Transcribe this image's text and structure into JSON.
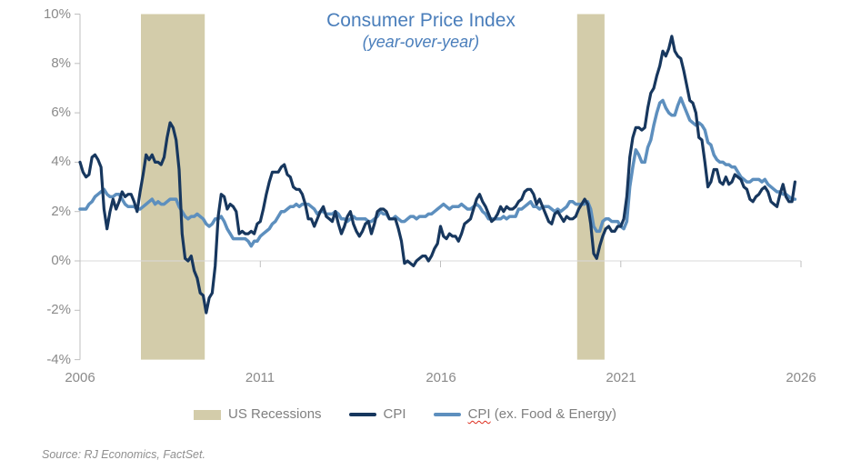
{
  "title": "Consumer Price Index",
  "subtitle": "(year-over-year)",
  "source": "Source: RJ Economics, FactSet.",
  "colors": {
    "title": "#4a7ebb",
    "axis_text": "#8a8a8a",
    "legend_text": "#7f7f7f",
    "source_text": "#8f8f8f",
    "gridline": "#d9d9d9",
    "axis_line": "#bfbfbf",
    "spellcheck_underline": "#dd2b1c"
  },
  "legend": {
    "items": [
      {
        "label": "US Recessions",
        "swatch": "box"
      },
      {
        "label": "CPI",
        "swatch": "line"
      },
      {
        "label": "CPI (ex. Food & Energy)",
        "label_head": "CPI",
        "label_tail": " (ex. Food & Energy)",
        "swatch": "line"
      }
    ]
  },
  "chart_data": {
    "type": "line",
    "title": "Consumer Price Index",
    "subtitle": "(year-over-year)",
    "grid": "zero-line-only",
    "legend_position": "bottom",
    "x_axis": {
      "start_year": 2006,
      "interval_months": 1,
      "range": [
        2006,
        2026
      ],
      "tick_values": [
        2006,
        2011,
        2016,
        2021,
        2026
      ],
      "tick_labels": [
        "2006",
        "2011",
        "2016",
        "2021",
        "2026"
      ]
    },
    "y_axis": {
      "unit": "percent",
      "range": [
        -4,
        10
      ],
      "tick_values": [
        10,
        8,
        6,
        4,
        2,
        0,
        -2,
        -4
      ],
      "tick_labels": [
        "10%",
        "8%",
        "6%",
        "4%",
        "2%",
        "0%",
        "-2%",
        "-4%"
      ]
    },
    "recessions": {
      "label": "US Recessions",
      "color": "#d3ccaa",
      "bands_years": [
        [
          2007.69,
          2009.46
        ],
        [
          2019.79,
          2020.55
        ]
      ]
    },
    "series": [
      {
        "name": "CPI",
        "color": "#17375e",
        "values": [
          4.0,
          3.6,
          3.4,
          3.5,
          4.2,
          4.3,
          4.1,
          3.8,
          2.1,
          1.3,
          2.0,
          2.5,
          2.1,
          2.4,
          2.8,
          2.6,
          2.7,
          2.7,
          2.4,
          2.0,
          2.8,
          3.5,
          4.3,
          4.1,
          4.3,
          4.0,
          4.0,
          3.9,
          4.2,
          5.0,
          5.6,
          5.4,
          4.9,
          3.7,
          1.1,
          0.1,
          0.0,
          0.2,
          -0.4,
          -0.7,
          -1.3,
          -1.4,
          -2.1,
          -1.5,
          -1.3,
          -0.2,
          1.8,
          2.7,
          2.6,
          2.1,
          2.3,
          2.2,
          2.0,
          1.1,
          1.2,
          1.1,
          1.1,
          1.2,
          1.1,
          1.5,
          1.6,
          2.1,
          2.7,
          3.2,
          3.6,
          3.6,
          3.6,
          3.8,
          3.9,
          3.5,
          3.4,
          3.0,
          2.9,
          2.9,
          2.7,
          2.3,
          1.7,
          1.7,
          1.4,
          1.7,
          2.0,
          2.2,
          1.8,
          1.7,
          1.6,
          2.0,
          1.5,
          1.1,
          1.4,
          1.8,
          2.0,
          1.5,
          1.2,
          1.0,
          1.2,
          1.5,
          1.6,
          1.1,
          1.5,
          2.0,
          2.1,
          2.1,
          2.0,
          1.7,
          1.7,
          1.7,
          1.3,
          0.8,
          -0.1,
          0.0,
          -0.1,
          -0.2,
          0.0,
          0.1,
          0.2,
          0.2,
          0.0,
          0.2,
          0.5,
          0.7,
          1.4,
          1.0,
          0.9,
          1.1,
          1.0,
          1.0,
          0.8,
          1.1,
          1.5,
          1.6,
          1.7,
          2.1,
          2.5,
          2.7,
          2.4,
          2.2,
          1.9,
          1.6,
          1.7,
          1.9,
          2.2,
          2.0,
          2.2,
          2.1,
          2.1,
          2.2,
          2.4,
          2.5,
          2.8,
          2.9,
          2.9,
          2.7,
          2.3,
          2.5,
          2.2,
          1.9,
          1.6,
          1.5,
          1.9,
          2.0,
          1.8,
          1.6,
          1.8,
          1.7,
          1.7,
          1.8,
          2.1,
          2.3,
          2.5,
          2.3,
          1.5,
          0.3,
          0.1,
          0.6,
          1.0,
          1.3,
          1.4,
          1.2,
          1.2,
          1.4,
          1.4,
          1.7,
          2.6,
          4.2,
          5.0,
          5.4,
          5.4,
          5.3,
          5.4,
          6.2,
          6.8,
          7.0,
          7.5,
          7.9,
          8.5,
          8.3,
          8.6,
          9.1,
          8.5,
          8.3,
          8.2,
          7.7,
          7.1,
          6.5,
          6.4,
          6.0,
          5.0,
          4.9,
          4.0,
          3.0,
          3.2,
          3.7,
          3.7,
          3.2,
          3.1,
          3.4,
          3.1,
          3.2,
          3.5,
          3.4,
          3.3,
          3.0,
          2.9,
          2.5,
          2.4,
          2.6,
          2.7,
          2.9,
          3.0,
          2.8,
          2.4,
          2.3,
          2.2,
          2.7,
          3.1,
          2.6,
          2.4,
          2.4,
          3.2
        ]
      },
      {
        "name": "CPI (ex. Food & Energy)",
        "color": "#5d8fbe",
        "values": [
          2.1,
          2.1,
          2.1,
          2.3,
          2.4,
          2.6,
          2.7,
          2.8,
          2.9,
          2.7,
          2.6,
          2.6,
          2.7,
          2.7,
          2.5,
          2.3,
          2.2,
          2.2,
          2.2,
          2.1,
          2.1,
          2.2,
          2.3,
          2.4,
          2.5,
          2.3,
          2.4,
          2.3,
          2.3,
          2.4,
          2.5,
          2.5,
          2.5,
          2.2,
          2.0,
          1.8,
          1.7,
          1.8,
          1.8,
          1.9,
          1.8,
          1.7,
          1.5,
          1.4,
          1.5,
          1.7,
          1.7,
          1.8,
          1.6,
          1.3,
          1.1,
          0.9,
          0.9,
          0.9,
          0.9,
          0.9,
          0.8,
          0.6,
          0.8,
          0.8,
          1.0,
          1.1,
          1.2,
          1.3,
          1.5,
          1.6,
          1.8,
          2.0,
          2.0,
          2.1,
          2.2,
          2.2,
          2.3,
          2.2,
          2.3,
          2.3,
          2.3,
          2.2,
          2.1,
          1.9,
          2.0,
          2.0,
          1.9,
          1.9,
          1.9,
          2.0,
          1.9,
          1.7,
          1.7,
          1.6,
          1.7,
          1.8,
          1.7,
          1.7,
          1.7,
          1.7,
          1.6,
          1.6,
          1.7,
          1.8,
          2.0,
          1.9,
          1.9,
          1.7,
          1.7,
          1.8,
          1.7,
          1.6,
          1.6,
          1.7,
          1.8,
          1.8,
          1.7,
          1.8,
          1.8,
          1.8,
          1.9,
          1.9,
          2.0,
          2.1,
          2.2,
          2.3,
          2.2,
          2.1,
          2.2,
          2.2,
          2.2,
          2.3,
          2.2,
          2.1,
          2.1,
          2.2,
          2.3,
          2.2,
          2.0,
          1.9,
          1.7,
          1.7,
          1.7,
          1.7,
          1.7,
          1.8,
          1.7,
          1.8,
          1.8,
          1.8,
          2.1,
          2.1,
          2.2,
          2.3,
          2.4,
          2.2,
          2.2,
          2.1,
          2.2,
          2.2,
          2.2,
          2.1,
          2.0,
          2.1,
          2.0,
          2.1,
          2.2,
          2.4,
          2.4,
          2.3,
          2.3,
          2.3,
          2.3,
          2.4,
          2.1,
          1.4,
          1.2,
          1.2,
          1.6,
          1.7,
          1.7,
          1.6,
          1.6,
          1.6,
          1.4,
          1.3,
          1.6,
          3.0,
          3.8,
          4.5,
          4.3,
          4.0,
          4.0,
          4.6,
          4.9,
          5.5,
          6.0,
          6.4,
          6.5,
          6.2,
          6.0,
          5.9,
          5.9,
          6.3,
          6.6,
          6.3,
          6.0,
          5.7,
          5.6,
          5.5,
          5.6,
          5.5,
          5.3,
          4.8,
          4.7,
          4.3,
          4.1,
          4.0,
          4.0,
          3.9,
          3.9,
          3.8,
          3.8,
          3.6,
          3.4,
          3.3,
          3.2,
          3.2,
          3.3,
          3.3,
          3.3,
          3.2,
          3.3,
          3.1,
          3.0,
          2.9,
          2.8,
          2.8,
          2.7,
          2.7,
          2.6,
          2.5,
          2.5
        ]
      }
    ]
  }
}
